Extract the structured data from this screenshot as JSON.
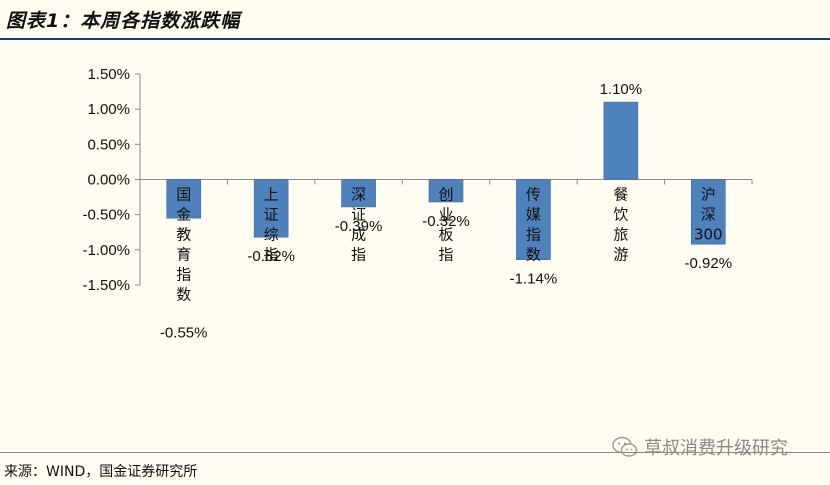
{
  "header": {
    "title": "图表1：本周各指数涨跌幅"
  },
  "footer": {
    "source": "来源：WIND，国金证券研究所"
  },
  "watermark": {
    "text": "草叔消费升级研究",
    "icon": "wechat-icon"
  },
  "colors": {
    "bar": "#4f81bd",
    "bar_edge": "#3b6aa3",
    "background": "#fffdf2",
    "rule": "#1f3a75"
  },
  "chart_data": {
    "type": "bar",
    "title": "",
    "xlabel": "",
    "ylabel": "",
    "ylim": [
      -1.5,
      1.5
    ],
    "y_ticks": [
      "1.50%",
      "1.00%",
      "0.50%",
      "0.00%",
      "-0.50%",
      "-1.00%",
      "-1.50%"
    ],
    "y_tick_values": [
      1.5,
      1.0,
      0.5,
      0.0,
      -0.5,
      -1.0,
      -1.5
    ],
    "grid": false,
    "categories": [
      "国金教育指数",
      "上证综指",
      "深证成指",
      "创业板指",
      "传媒指数",
      "餐饮旅游",
      "沪深300"
    ],
    "values": [
      -0.55,
      -0.82,
      -0.39,
      -0.32,
      -1.14,
      1.1,
      -0.92
    ],
    "data_labels": [
      "-0.55%",
      "-0.82%",
      "-0.39%",
      "-0.32%",
      "-1.14%",
      "1.10%",
      "-0.92%"
    ]
  }
}
